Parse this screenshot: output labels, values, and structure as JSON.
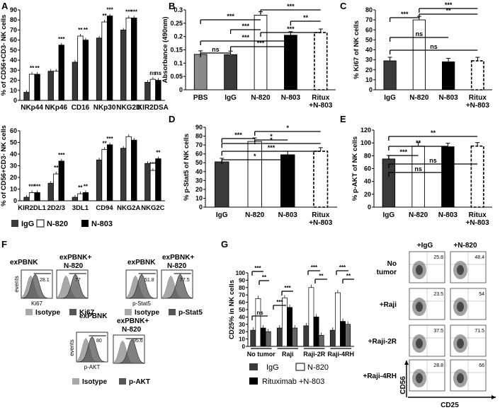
{
  "colors": {
    "igg": "#3a3a3a",
    "n820": "#ffffff",
    "n803": "#000000",
    "pbs": "#8a8a8a",
    "isotype": "#a8a8a8",
    "marker": "#555555"
  },
  "panels": {
    "A": "A",
    "B": "B",
    "C": "C",
    "D": "D",
    "E": "E",
    "F": "F",
    "G": "G"
  },
  "legend": {
    "igg": "IgG",
    "n820": "N-820",
    "n803": "N-803",
    "rituximab": "Rituximab +N-803"
  },
  "chart_data": [
    {
      "id": "A1",
      "type": "bar",
      "ylabel": "% of CD56+CD3- NK cells",
      "ylim": [
        0,
        90
      ],
      "yticks": [
        0,
        10,
        20,
        30,
        40,
        50,
        60,
        70,
        80,
        90
      ],
      "categories": [
        "NKp44",
        "NKp46",
        "CD16",
        "NKp30",
        "NKG2D",
        "KIR2DSA"
      ],
      "series": [
        {
          "name": "IgG",
          "values": [
            8,
            29,
            38,
            62,
            70,
            18
          ]
        },
        {
          "name": "N-820",
          "values": [
            26,
            29,
            64,
            78,
            82,
            21
          ]
        },
        {
          "name": "N-803",
          "values": [
            26,
            55,
            60,
            84,
            82,
            20
          ]
        }
      ],
      "sig": [
        [
          "**",
          "**"
        ],
        [
          "***",
          ""
        ],
        [
          "**",
          "**"
        ],
        [
          "***",
          "**"
        ],
        [
          "***",
          "***"
        ],
        [
          "ns",
          "ns"
        ]
      ]
    },
    {
      "id": "A2",
      "type": "bar",
      "ylabel": "% of CD56+CD3- NK cells",
      "ylim": [
        0,
        60
      ],
      "yticks": [
        0,
        10,
        20,
        30,
        40,
        50,
        60
      ],
      "categories": [
        "KIR2DL1",
        "2D2/3",
        "3DL1",
        "CD94",
        "NKG2A",
        "NKG2C"
      ],
      "series": [
        {
          "name": "IgG",
          "values": [
            3,
            15,
            3,
            35,
            45,
            32
          ]
        },
        {
          "name": "N-820",
          "values": [
            7,
            23,
            6,
            44,
            55,
            26
          ]
        },
        {
          "name": "N-803",
          "values": [
            7,
            34,
            7,
            48,
            52,
            36
          ]
        }
      ],
      "sig": [
        [
          "***",
          "***"
        ],
        [
          "***",
          "**"
        ],
        [
          "**",
          "**"
        ],
        [
          "***",
          "**"
        ],
        [
          "",
          ""
        ],
        [
          "**",
          "***"
        ]
      ]
    },
    {
      "id": "B",
      "type": "bar",
      "ylabel": "Absorbance (490nm)",
      "ylim": [
        0,
        0.3
      ],
      "yticks": [
        "0",
        "0.05",
        "0.1",
        "0.15",
        "0.2",
        "0.25",
        "0.3"
      ],
      "categories": [
        "PBS",
        "IgG",
        "N-820",
        "N-803",
        "Ritux +N-803"
      ],
      "values": [
        0.133,
        0.132,
        0.28,
        0.205,
        0.215
      ],
      "sig": [
        "ns",
        "***",
        "***",
        "***",
        "**",
        "***",
        "***",
        "***"
      ]
    },
    {
      "id": "C",
      "type": "bar",
      "ylabel": "% Ki67 of NK cells",
      "ylim": [
        0,
        80
      ],
      "yticks": [
        0,
        10,
        20,
        30,
        40,
        50,
        60,
        70,
        80
      ],
      "categories": [
        "IgG",
        "N-820",
        "N-803",
        "Ritux +N-803"
      ],
      "values": [
        29,
        70,
        28,
        29
      ],
      "sig": [
        "***",
        "***",
        "**",
        "ns",
        "ns"
      ]
    },
    {
      "id": "D",
      "type": "bar",
      "ylabel": "% p-Stat5 of NK cells",
      "ylim": [
        0,
        90
      ],
      "yticks": [
        0,
        10,
        20,
        30,
        40,
        50,
        60,
        70,
        80,
        90
      ],
      "categories": [
        "IgG",
        "N-820",
        "N-803",
        "Ritux +N-803"
      ],
      "values": [
        51,
        74,
        59,
        63
      ],
      "sig": [
        "***",
        "*",
        "*",
        "*",
        "***",
        "*"
      ]
    },
    {
      "id": "E",
      "type": "bar",
      "ylabel": "% p-AKT of NK cells",
      "ylim": [
        0,
        120
      ],
      "yticks": [
        0,
        20,
        40,
        60,
        80,
        100,
        120
      ],
      "categories": [
        "IgG",
        "N-820",
        "N-803",
        "Ritux +N-803"
      ],
      "values": [
        75,
        95,
        94,
        95
      ],
      "sig": [
        "**",
        "**",
        "***",
        "ns",
        "ns"
      ]
    },
    {
      "id": "G",
      "type": "bar",
      "ylabel": "CD25% in NK cells",
      "ylim": [
        0,
        100
      ],
      "yticks": [
        0,
        10,
        20,
        30,
        40,
        50,
        60,
        70,
        80,
        90,
        100
      ],
      "categories": [
        "No tumor",
        "Raji",
        "Raji-2R",
        "Raji-4RH"
      ],
      "series": [
        {
          "name": "IgG",
          "values": [
            22,
            25,
            28,
            22
          ]
        },
        {
          "name": "N-820",
          "values": [
            65,
            66,
            80,
            73
          ]
        },
        {
          "name": "Rituximab +N-803",
          "values": [
            25,
            53,
            40,
            34
          ]
        },
        {
          "name": "",
          "values": [
            20,
            25,
            15,
            30
          ]
        }
      ],
      "sig": [
        "***",
        "**",
        "ns",
        "***",
        "***",
        "***",
        "**",
        "***",
        "**"
      ]
    }
  ],
  "flow_F": {
    "ki67": {
      "label_a": "exPBNK",
      "label_b": "exPBNK+ N-820",
      "val_a": "28.1",
      "val_b": "77",
      "xaxis": "Ki67",
      "yaxis": "events",
      "leg1": "Isotype",
      "leg2": "Ki67"
    },
    "pstat5": {
      "label_a": "exPBNK",
      "label_b": "exPBNK+ N-820",
      "val_a": "51.8",
      "val_b": "77.5",
      "xaxis": "p-Stat5",
      "leg1": "Isotype",
      "leg2": "p-Stat5"
    },
    "pakt": {
      "label_a": "exPBNK",
      "label_b": "exPBNK+ N-820",
      "val_a": "80",
      "val_b": "95.6",
      "xaxis": "p-AKT",
      "yaxis": "events",
      "leg1": "Isotype",
      "leg2": "p-AKT"
    }
  },
  "flow_G": {
    "col_igg": "+IgG",
    "col_n820": "+N-820",
    "rows": [
      {
        "label": "No tumor",
        "igg": "25.8",
        "n820": "48.4"
      },
      {
        "label": "+Raji",
        "igg": "23.5",
        "n820": "54"
      },
      {
        "label": "+Raji-2R",
        "igg": "37.5",
        "n820": "71.5"
      },
      {
        "label": "+Raji-4RH",
        "igg": "28.8",
        "n820": "66"
      }
    ],
    "xaxis": "CD25",
    "yaxis": "CD56"
  }
}
